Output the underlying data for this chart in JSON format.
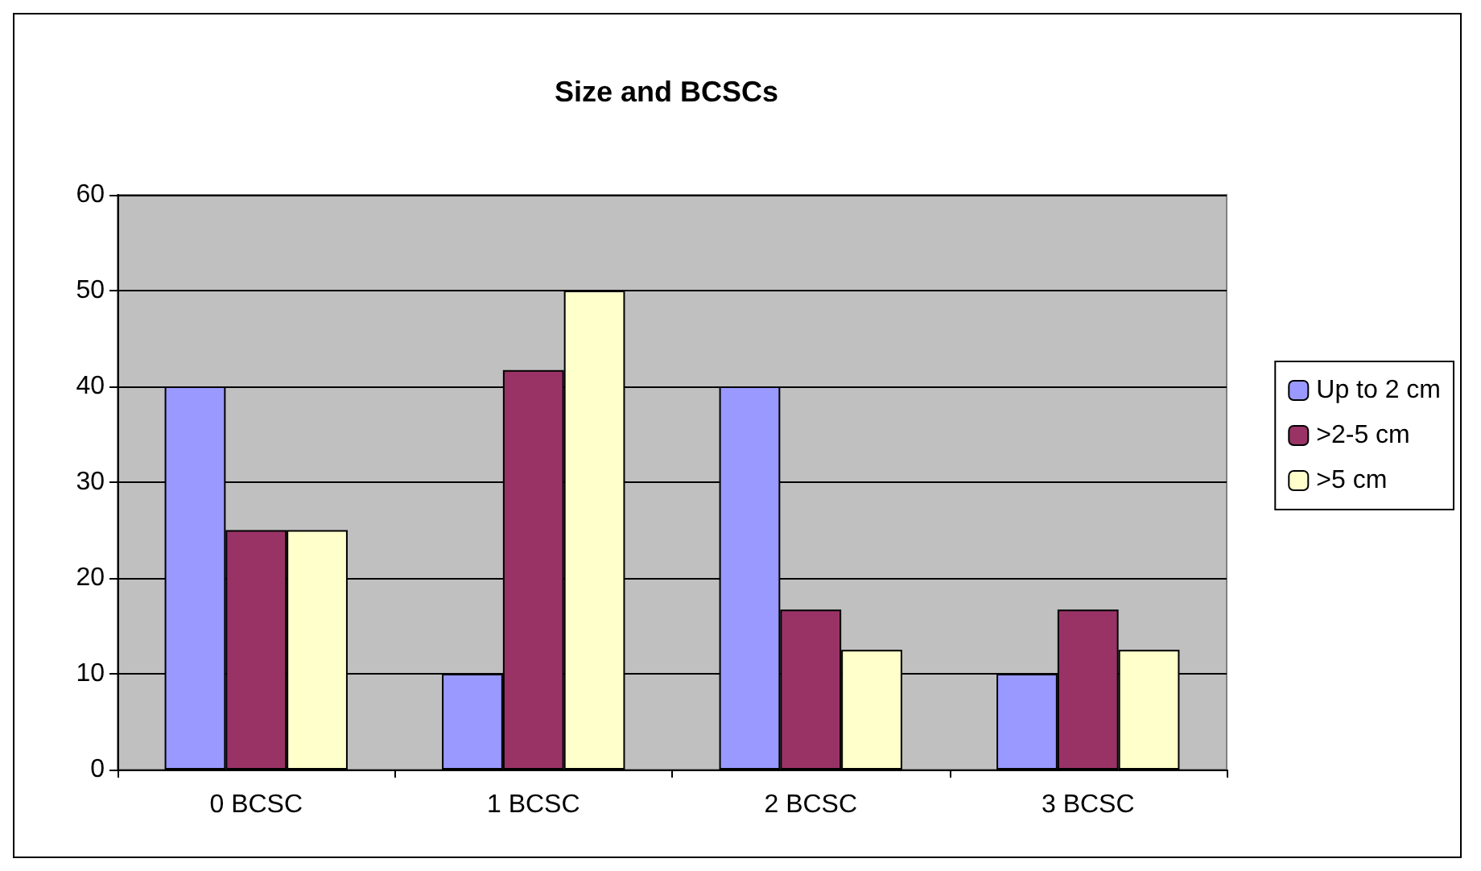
{
  "chart_data": {
    "type": "bar",
    "title": "Size and BCSCs",
    "categories": [
      "0 BCSC",
      "1 BCSC",
      "2 BCSC",
      "3 BCSC"
    ],
    "series": [
      {
        "name": "Up to 2 cm",
        "color": "#9999ff",
        "values": [
          40,
          10,
          40,
          10
        ]
      },
      {
        "name": ">2-5 cm",
        "color": "#993366",
        "values": [
          25,
          41.7,
          16.7,
          16.7
        ]
      },
      {
        "name": ">5 cm",
        "color": "#ffffcc",
        "values": [
          25,
          50,
          12.5,
          12.5
        ]
      }
    ],
    "ylim": [
      0,
      60
    ],
    "yticks": [
      0,
      10,
      20,
      30,
      40,
      50,
      60
    ],
    "grid": "y",
    "legend": "right"
  }
}
